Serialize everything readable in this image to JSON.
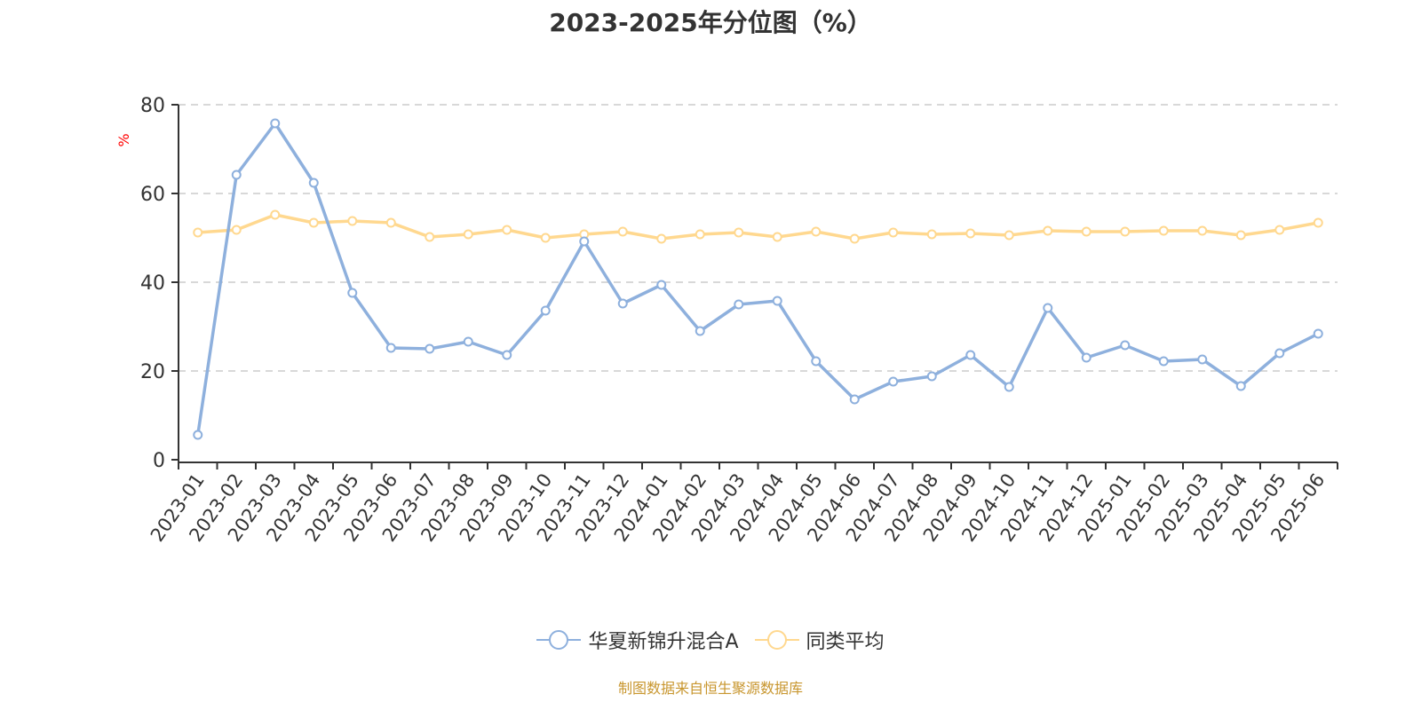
{
  "title": "2023-2025年分位图（%）",
  "source_note": "制图数据来自恒生聚源数据库",
  "legend": [
    {
      "label": "华夏新锦升混合A",
      "color": "#8eb0dd"
    },
    {
      "label": "同类平均",
      "color": "#ffd88f"
    }
  ],
  "chart_data": {
    "type": "line",
    "title": "2023-2025年分位图（%）",
    "xlabel": "",
    "ylabel": "%",
    "ylim": [
      0,
      80
    ],
    "yticks": [
      0,
      20,
      40,
      60,
      80
    ],
    "grid": true,
    "legend_position": "bottom",
    "categories": [
      "2023-01",
      "2023-02",
      "2023-03",
      "2023-04",
      "2023-05",
      "2023-06",
      "2023-07",
      "2023-08",
      "2023-09",
      "2023-10",
      "2023-11",
      "2023-12",
      "2024-01",
      "2024-02",
      "2024-03",
      "2024-04",
      "2024-05",
      "2024-06",
      "2024-07",
      "2024-08",
      "2024-09",
      "2024-10",
      "2024-11",
      "2024-12",
      "2025-01",
      "2025-02",
      "2025-03",
      "2025-04",
      "2025-05",
      "2025-06"
    ],
    "series": [
      {
        "name": "华夏新锦升混合A",
        "color": "#8eb0dd",
        "values": [
          5.6,
          64.2,
          75.8,
          62.4,
          37.6,
          25.2,
          25.0,
          26.6,
          23.6,
          33.6,
          49.2,
          35.2,
          39.4,
          29.0,
          35.0,
          35.8,
          22.2,
          13.6,
          17.6,
          18.8,
          23.6,
          16.4,
          34.2,
          23.0,
          25.8,
          22.2,
          22.6,
          16.6,
          24.0,
          28.4
        ]
      },
      {
        "name": "同类平均",
        "color": "#ffd88f",
        "values": [
          51.2,
          51.8,
          55.2,
          53.4,
          53.8,
          53.4,
          50.2,
          50.8,
          51.8,
          50.0,
          50.8,
          51.4,
          49.8,
          50.8,
          51.2,
          50.2,
          51.4,
          49.8,
          51.2,
          50.8,
          51.0,
          50.6,
          51.6,
          51.4,
          51.4,
          51.6,
          51.6,
          50.6,
          51.8,
          53.4
        ]
      }
    ]
  }
}
